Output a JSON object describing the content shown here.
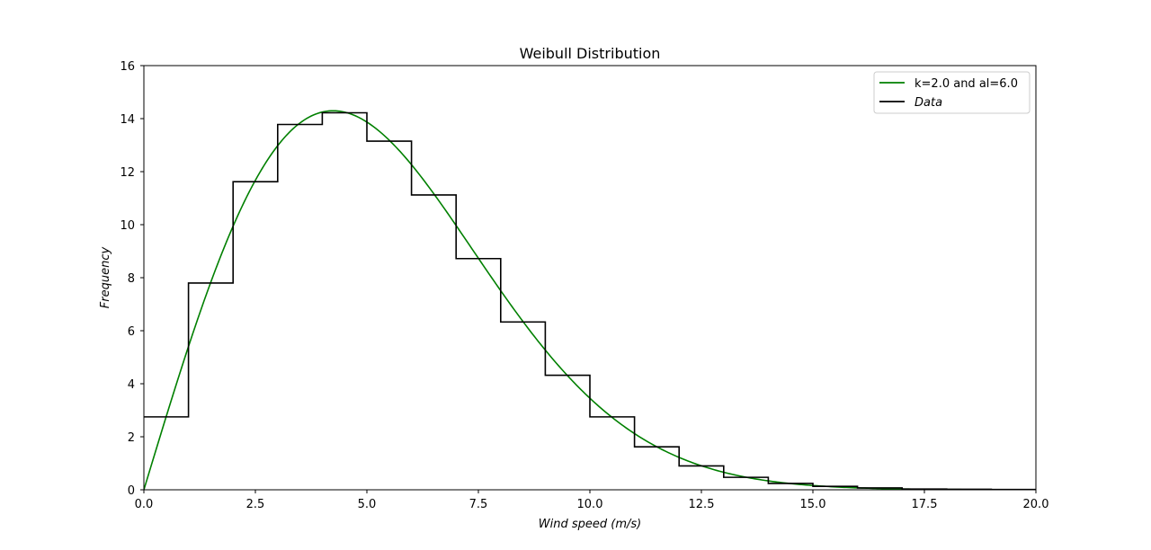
{
  "chart_data": {
    "type": "line",
    "title": "Weibull Distribution",
    "xlabel": "Wind speed (m/s)",
    "ylabel": "Frequency",
    "xlim": [
      0,
      20
    ],
    "ylim": [
      0,
      16
    ],
    "xticks": [
      "0.0",
      "2.5",
      "5.0",
      "7.5",
      "10.0",
      "12.5",
      "15.0",
      "17.5",
      "20.0"
    ],
    "yticks": [
      "0",
      "2",
      "4",
      "6",
      "8",
      "10",
      "12",
      "14",
      "16"
    ],
    "grid": false,
    "legend_position": "top-right",
    "series": [
      {
        "name": "k=2.0 and al=6.0",
        "kind": "curve",
        "color": "#008000",
        "k": 2.0,
        "al": 6.0
      },
      {
        "name": "Data",
        "kind": "step",
        "color": "#000000",
        "bin_edges": [
          0,
          1,
          2,
          3,
          4,
          5,
          6,
          7,
          8,
          9,
          10,
          11,
          12,
          13,
          14,
          15,
          16,
          17,
          18,
          19,
          20
        ],
        "values": [
          2.75,
          7.8,
          11.62,
          13.78,
          14.22,
          13.15,
          11.12,
          8.72,
          6.33,
          4.32,
          2.75,
          1.62,
          0.9,
          0.47,
          0.24,
          0.13,
          0.07,
          0.03,
          0.02,
          0.01
        ]
      }
    ]
  }
}
